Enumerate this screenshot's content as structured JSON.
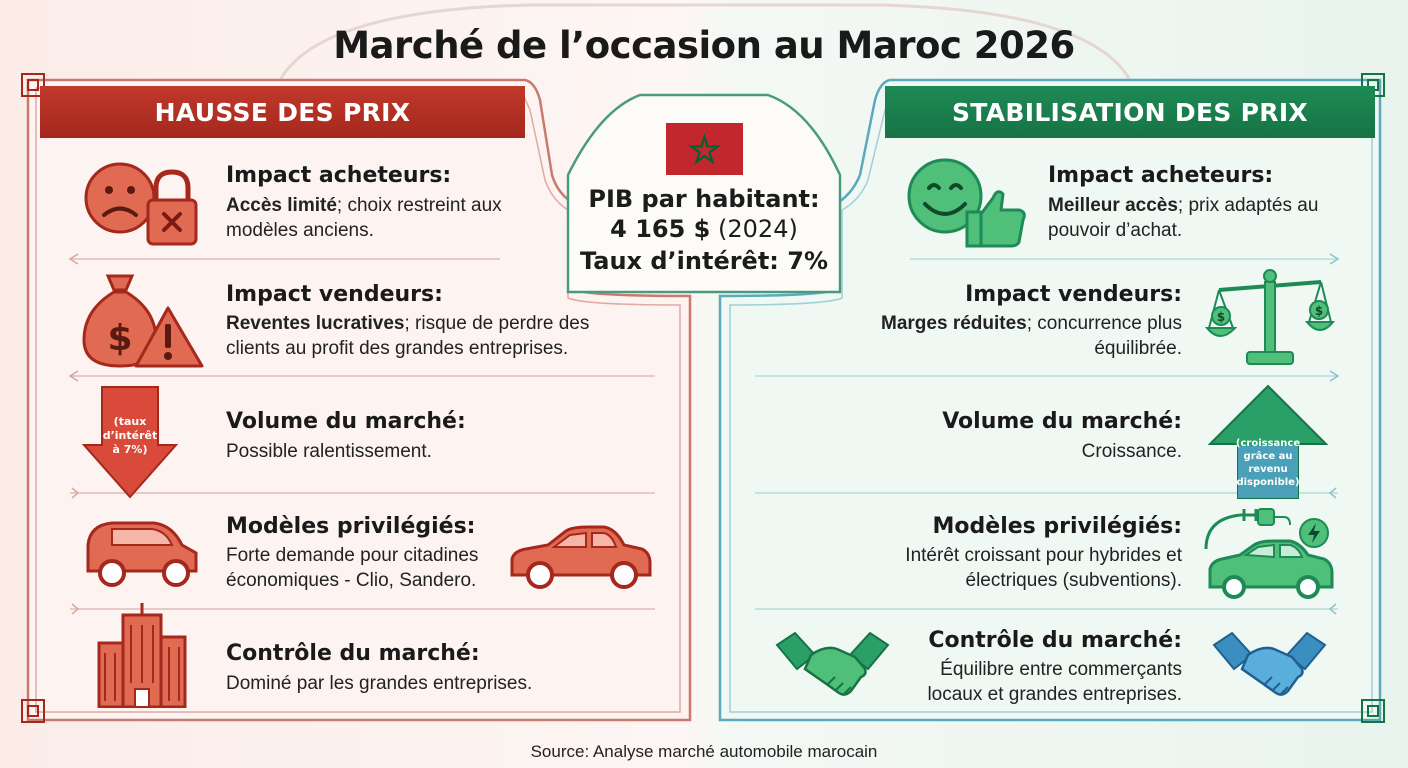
{
  "title": "Marché de l’occasion au Maroc 2026",
  "colors": {
    "red": "#c0392b",
    "green": "#1e8a55",
    "teal": "#4aa8b8"
  },
  "left": {
    "banner": "HAUSSE DES PRIX",
    "rows": [
      {
        "title": "Impact acheteurs:",
        "bold": "Accès limité",
        "text": "; choix restreint aux modèles anciens.",
        "icon": "sad-face-lock-icon"
      },
      {
        "title": "Impact vendeurs:",
        "bold": "Reventes lucratives",
        "text": "; risque de perdre des clients au profit des grandes entreprises.",
        "icon": "money-bag-warning-icon"
      },
      {
        "title": "Volume du marché:",
        "bold": "",
        "text": "Possible ralentissement.",
        "icon": "down-arrow-icon",
        "arrow_label": "(taux d’intérêt à 7%)"
      },
      {
        "title": "Modèles privilégiés:",
        "bold": "",
        "text": "Forte demande pour citadines économiques - Clio, Sandero.",
        "icon": "city-car-icon"
      },
      {
        "title": "Contrôle du marché:",
        "bold": "",
        "text": "Dominé par les grandes entreprises.",
        "icon": "office-building-icon"
      }
    ]
  },
  "right": {
    "banner": "STABILISATION DES PRIX",
    "rows": [
      {
        "title": "Impact acheteurs:",
        "bold": "Meilleur accès",
        "text": "; prix adaptés au pouvoir d’achat.",
        "icon": "happy-face-thumbs-up-icon"
      },
      {
        "title": "Impact vendeurs:",
        "bold": "Marges réduites",
        "text": "; concurrence plus équilibrée.",
        "icon": "balance-scale-icon"
      },
      {
        "title": "Volume du marché:",
        "bold": "",
        "text": "Croissance.",
        "icon": "up-arrow-icon",
        "arrow_label": "(croissance grâce au revenu disponible)"
      },
      {
        "title": "Modèles privilégiés:",
        "bold": "",
        "text": "Intérêt croissant pour hybrides et électriques (subventions).",
        "icon": "electric-car-icon"
      },
      {
        "title": "Contrôle du marché:",
        "bold": "",
        "text": "Équilibre entre commerçants locaux et grandes entreprises.",
        "icon": "handshake-icon"
      }
    ]
  },
  "center": {
    "flag": "morocco-flag-icon",
    "pib_label": "PIB par habitant:",
    "pib_value": "4 165 $",
    "pib_year": "(2024)",
    "taux": "Taux d’intérêt: 7%"
  },
  "source": "Source: Analyse marché automobile marocain"
}
